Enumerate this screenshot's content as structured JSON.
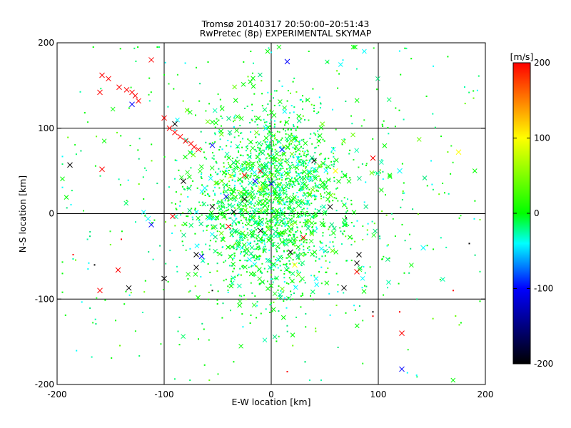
{
  "chart_data": {
    "type": "scatter",
    "title": "Tromsø 20140317 20:50:00–20:51:43",
    "subtitle": "RwPretec (8p) EXPERIMENTAL SKYMAP",
    "xlabel": "E-W location [km]",
    "ylabel": "N-S location [km]",
    "xlim": [
      -200,
      200
    ],
    "ylim": [
      -200,
      200
    ],
    "xticks": [
      "-200",
      "-100",
      "0",
      "100",
      "200"
    ],
    "yticks": [
      "-200",
      "-100",
      "0",
      "100",
      "200"
    ],
    "grid": true,
    "markers": "small dots and crosses, colored by velocity",
    "colorbar": {
      "unit": "[m/s]",
      "range": [
        -200,
        200
      ],
      "ticks": [
        "200",
        "100",
        "0",
        "-100",
        "-200"
      ],
      "colormap": [
        "#000000",
        "#0000ff",
        "#00ffff",
        "#00ff00",
        "#ffff00",
        "#ff0000"
      ]
    },
    "series": [
      {
        "marker": "x",
        "color": "#ff0000",
        "points": [
          [
            -158,
            162
          ],
          [
            -152,
            158
          ],
          [
            -142,
            148
          ],
          [
            -135,
            145
          ],
          [
            -130,
            142
          ],
          [
            -127,
            138
          ],
          [
            -124,
            132
          ],
          [
            -160,
            142
          ],
          [
            -100,
            112
          ],
          [
            -95,
            100
          ],
          [
            -90,
            95
          ],
          [
            -85,
            90
          ],
          [
            -80,
            85
          ],
          [
            -75,
            82
          ],
          [
            -72,
            78
          ],
          [
            -68,
            75
          ],
          [
            -112,
            180
          ],
          [
            -158,
            52
          ],
          [
            -160,
            -90
          ],
          [
            -143,
            -66
          ],
          [
            95,
            65
          ],
          [
            -10,
            50
          ],
          [
            -25,
            45
          ],
          [
            30,
            -28
          ],
          [
            80,
            -68
          ],
          [
            122,
            -140
          ],
          [
            -92,
            -3
          ],
          [
            -40,
            -15
          ]
        ]
      },
      {
        "marker": "x",
        "color": "#ffff00",
        "points": [
          [
            175,
            72
          ],
          [
            -38,
            44
          ],
          [
            22,
            -60
          ],
          [
            60,
            50
          ],
          [
            -10,
            30
          ]
        ]
      },
      {
        "marker": "x",
        "color": "#00ffff",
        "points": [
          [
            -115,
            -6
          ],
          [
            142,
            -40
          ],
          [
            120,
            50
          ],
          [
            -58,
            -5
          ],
          [
            -5,
            100
          ],
          [
            -62,
            30
          ]
        ]
      },
      {
        "marker": "x",
        "color": "#0000ff",
        "points": [
          [
            15,
            178
          ],
          [
            -130,
            128
          ],
          [
            -112,
            -13
          ],
          [
            -42,
            20
          ],
          [
            -55,
            80
          ],
          [
            -15,
            38
          ],
          [
            0,
            35
          ],
          [
            10,
            75
          ],
          [
            122,
            -182
          ],
          [
            -65,
            -50
          ]
        ]
      },
      {
        "marker": "x",
        "color": "#000000",
        "points": [
          [
            -188,
            57
          ],
          [
            -133,
            -87
          ],
          [
            -100,
            -76
          ],
          [
            -90,
            105
          ],
          [
            -82,
            38
          ],
          [
            -70,
            -48
          ],
          [
            -70,
            -63
          ],
          [
            -55,
            8
          ],
          [
            -25,
            17
          ],
          [
            -35,
            2
          ],
          [
            -10,
            -20
          ],
          [
            40,
            62
          ],
          [
            55,
            8
          ],
          [
            68,
            -87
          ],
          [
            80,
            -58
          ],
          [
            82,
            -48
          ],
          [
            18,
            -45
          ]
        ]
      },
      {
        "marker": "dot",
        "color": "#ff0000",
        "points": [
          [
            -185,
            -48
          ],
          [
            -140,
            -30
          ],
          [
            95,
            -120
          ],
          [
            120,
            -115
          ],
          [
            15,
            -185
          ],
          [
            170,
            -90
          ]
        ]
      },
      {
        "marker": "dot",
        "color": "#000000",
        "points": [
          [
            -165,
            -60
          ],
          [
            70,
            -5
          ],
          [
            95,
            -115
          ],
          [
            185,
            -35
          ],
          [
            -55,
            -90
          ]
        ]
      }
    ],
    "cloud_note": "plus about 2000 green and cyan points with velocity near 0 m/s, concentrated around (0, 20) km"
  }
}
